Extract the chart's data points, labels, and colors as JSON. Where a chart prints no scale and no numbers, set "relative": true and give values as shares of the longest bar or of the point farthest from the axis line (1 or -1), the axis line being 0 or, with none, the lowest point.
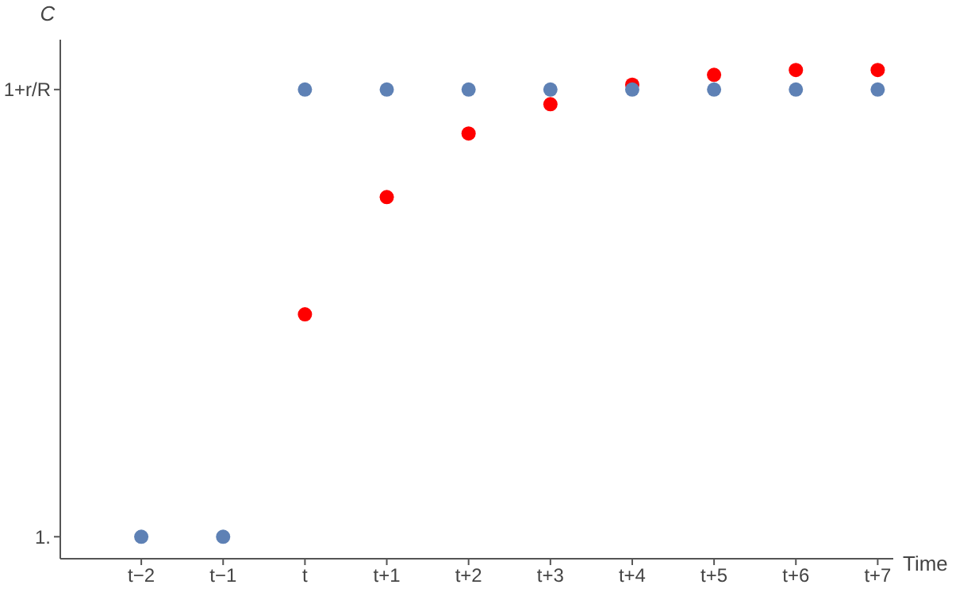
{
  "chart_data": {
    "type": "scatter",
    "xlabel": "Time",
    "ylabel": "C",
    "relative": true,
    "categories": [
      "t−2",
      "t−1",
      "t",
      "t+1",
      "t+2",
      "t+3",
      "t+4",
      "t+5",
      "t+6",
      "t+7"
    ],
    "series": [
      {
        "color": "#ff0000",
        "values": [
          null,
          null,
          0.5,
          0.74,
          0.87,
          0.93,
          0.97,
          0.99,
          1.0,
          1.0
        ]
      },
      {
        "color": "#5e81b5",
        "values": [
          0.045,
          0.045,
          0.96,
          0.96,
          0.96,
          0.96,
          0.96,
          0.96,
          0.96,
          0.96
        ]
      }
    ],
    "annotations": [
      "1.",
      "1+r/R"
    ],
    "marker": "circle",
    "grid": false,
    "legend": false
  }
}
